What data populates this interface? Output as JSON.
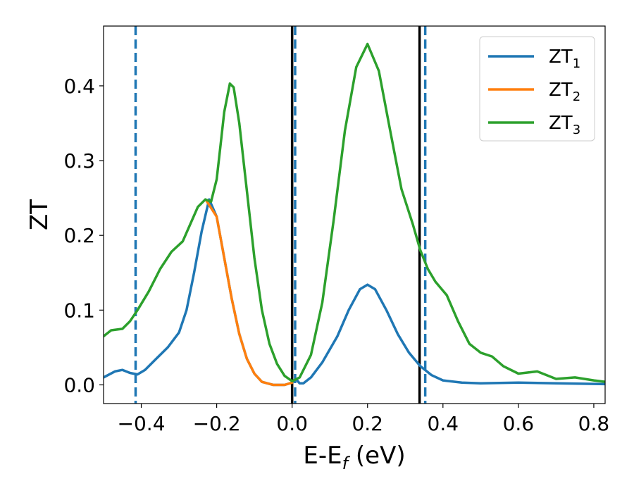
{
  "chart_data": {
    "type": "line",
    "title": "",
    "xlabel": {
      "main": "E-E",
      "sub": "f",
      "unit": " (eV)"
    },
    "ylabel": "ZT",
    "xlim": [
      -0.5,
      0.83
    ],
    "ylim": [
      -0.025,
      0.48
    ],
    "xticks": [
      -0.4,
      -0.2,
      0.0,
      0.2,
      0.4,
      0.6,
      0.8
    ],
    "xtick_labels": [
      "−0.4",
      "−0.2",
      "0.0",
      "0.2",
      "0.4",
      "0.6",
      "0.8"
    ],
    "yticks": [
      0.0,
      0.1,
      0.2,
      0.3,
      0.4
    ],
    "ytick_labels": [
      "0.0",
      "0.1",
      "0.2",
      "0.3",
      "0.4"
    ],
    "grid": false,
    "legend_position": "top-right",
    "vlines": [
      {
        "x": -0.415,
        "style": "dashed",
        "color": "#1f77b4"
      },
      {
        "x": 0.008,
        "style": "dashed",
        "color": "#1f77b4"
      },
      {
        "x": 0.353,
        "style": "dashed",
        "color": "#1f77b4"
      },
      {
        "x": 0.0,
        "style": "solid",
        "color": "#000000"
      },
      {
        "x": 0.338,
        "style": "solid",
        "color": "#000000"
      }
    ],
    "series": [
      {
        "name": "ZT",
        "sub": "1",
        "color": "#1f77b4",
        "points": [
          [
            -0.5,
            0.01
          ],
          [
            -0.47,
            0.018
          ],
          [
            -0.45,
            0.02
          ],
          [
            -0.43,
            0.016
          ],
          [
            -0.41,
            0.014
          ],
          [
            -0.39,
            0.02
          ],
          [
            -0.36,
            0.035
          ],
          [
            -0.33,
            0.05
          ],
          [
            -0.3,
            0.07
          ],
          [
            -0.28,
            0.1
          ],
          [
            -0.26,
            0.15
          ],
          [
            -0.24,
            0.205
          ],
          [
            -0.22,
            0.248
          ],
          [
            -0.2,
            0.225
          ],
          [
            -0.18,
            0.17
          ],
          [
            -0.16,
            0.115
          ],
          [
            -0.14,
            0.068
          ],
          [
            -0.12,
            0.035
          ],
          [
            -0.1,
            0.015
          ],
          [
            -0.08,
            0.004
          ],
          [
            -0.05,
            0.0
          ],
          [
            -0.02,
            0.0
          ],
          [
            0.0,
            0.003
          ],
          [
            0.01,
            0.008
          ],
          [
            0.02,
            0.002
          ],
          [
            0.03,
            0.002
          ],
          [
            0.05,
            0.01
          ],
          [
            0.08,
            0.03
          ],
          [
            0.12,
            0.065
          ],
          [
            0.15,
            0.1
          ],
          [
            0.18,
            0.128
          ],
          [
            0.2,
            0.134
          ],
          [
            0.22,
            0.128
          ],
          [
            0.25,
            0.1
          ],
          [
            0.28,
            0.068
          ],
          [
            0.31,
            0.043
          ],
          [
            0.34,
            0.025
          ],
          [
            0.37,
            0.013
          ],
          [
            0.4,
            0.006
          ],
          [
            0.45,
            0.003
          ],
          [
            0.5,
            0.002
          ],
          [
            0.6,
            0.003
          ],
          [
            0.7,
            0.002
          ],
          [
            0.83,
            0.001
          ]
        ]
      },
      {
        "name": "ZT",
        "sub": "2",
        "color": "#ff7f0e",
        "points": [
          [
            -0.228,
            0.247
          ],
          [
            -0.2,
            0.225
          ],
          [
            -0.18,
            0.17
          ],
          [
            -0.16,
            0.115
          ],
          [
            -0.14,
            0.068
          ],
          [
            -0.12,
            0.035
          ],
          [
            -0.1,
            0.015
          ],
          [
            -0.08,
            0.004
          ],
          [
            -0.05,
            0.0
          ],
          [
            -0.02,
            0.0
          ],
          [
            0.0,
            0.003
          ]
        ]
      },
      {
        "name": "ZT",
        "sub": "3",
        "color": "#2ca02c",
        "points": [
          [
            -0.5,
            0.065
          ],
          [
            -0.48,
            0.073
          ],
          [
            -0.45,
            0.075
          ],
          [
            -0.43,
            0.085
          ],
          [
            -0.41,
            0.1
          ],
          [
            -0.38,
            0.125
          ],
          [
            -0.35,
            0.155
          ],
          [
            -0.32,
            0.178
          ],
          [
            -0.29,
            0.192
          ],
          [
            -0.27,
            0.215
          ],
          [
            -0.25,
            0.238
          ],
          [
            -0.23,
            0.248
          ],
          [
            -0.215,
            0.245
          ],
          [
            -0.2,
            0.275
          ],
          [
            -0.19,
            0.32
          ],
          [
            -0.18,
            0.365
          ],
          [
            -0.165,
            0.403
          ],
          [
            -0.155,
            0.398
          ],
          [
            -0.14,
            0.35
          ],
          [
            -0.12,
            0.26
          ],
          [
            -0.1,
            0.17
          ],
          [
            -0.08,
            0.1
          ],
          [
            -0.06,
            0.055
          ],
          [
            -0.04,
            0.028
          ],
          [
            -0.02,
            0.012
          ],
          [
            0.0,
            0.005
          ],
          [
            0.02,
            0.01
          ],
          [
            0.05,
            0.04
          ],
          [
            0.08,
            0.11
          ],
          [
            0.11,
            0.22
          ],
          [
            0.14,
            0.34
          ],
          [
            0.17,
            0.425
          ],
          [
            0.2,
            0.456
          ],
          [
            0.23,
            0.42
          ],
          [
            0.26,
            0.34
          ],
          [
            0.29,
            0.262
          ],
          [
            0.32,
            0.215
          ],
          [
            0.34,
            0.18
          ],
          [
            0.36,
            0.155
          ],
          [
            0.38,
            0.138
          ],
          [
            0.41,
            0.12
          ],
          [
            0.44,
            0.085
          ],
          [
            0.47,
            0.055
          ],
          [
            0.5,
            0.043
          ],
          [
            0.53,
            0.038
          ],
          [
            0.56,
            0.025
          ],
          [
            0.6,
            0.015
          ],
          [
            0.65,
            0.018
          ],
          [
            0.7,
            0.008
          ],
          [
            0.75,
            0.01
          ],
          [
            0.8,
            0.006
          ],
          [
            0.83,
            0.004
          ]
        ]
      }
    ]
  }
}
